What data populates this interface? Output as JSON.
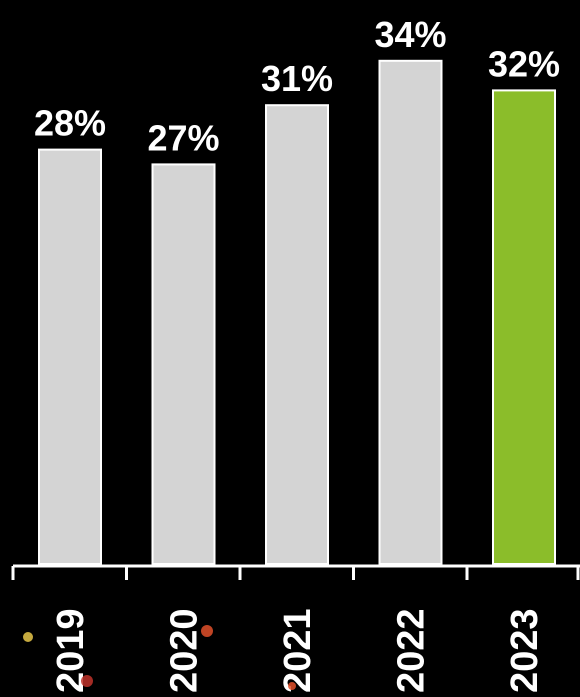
{
  "chart_data": {
    "type": "bar",
    "categories": [
      "2019",
      "2020",
      "2021",
      "2022",
      "2023"
    ],
    "values": [
      28,
      27,
      31,
      34,
      32
    ],
    "value_labels": [
      "28%",
      "27%",
      "31%",
      "34%",
      "32%"
    ],
    "unit": "%",
    "title": "",
    "xlabel": "",
    "ylabel": "",
    "ylim": [
      0,
      34
    ],
    "grid": false,
    "legend": "none",
    "colors": {
      "default": "#d4d4d4",
      "highlight": "#8bbd2a",
      "highlight_category": "2023",
      "background": "#000000",
      "axis": "#ffffff",
      "text": "#ffffff"
    }
  }
}
